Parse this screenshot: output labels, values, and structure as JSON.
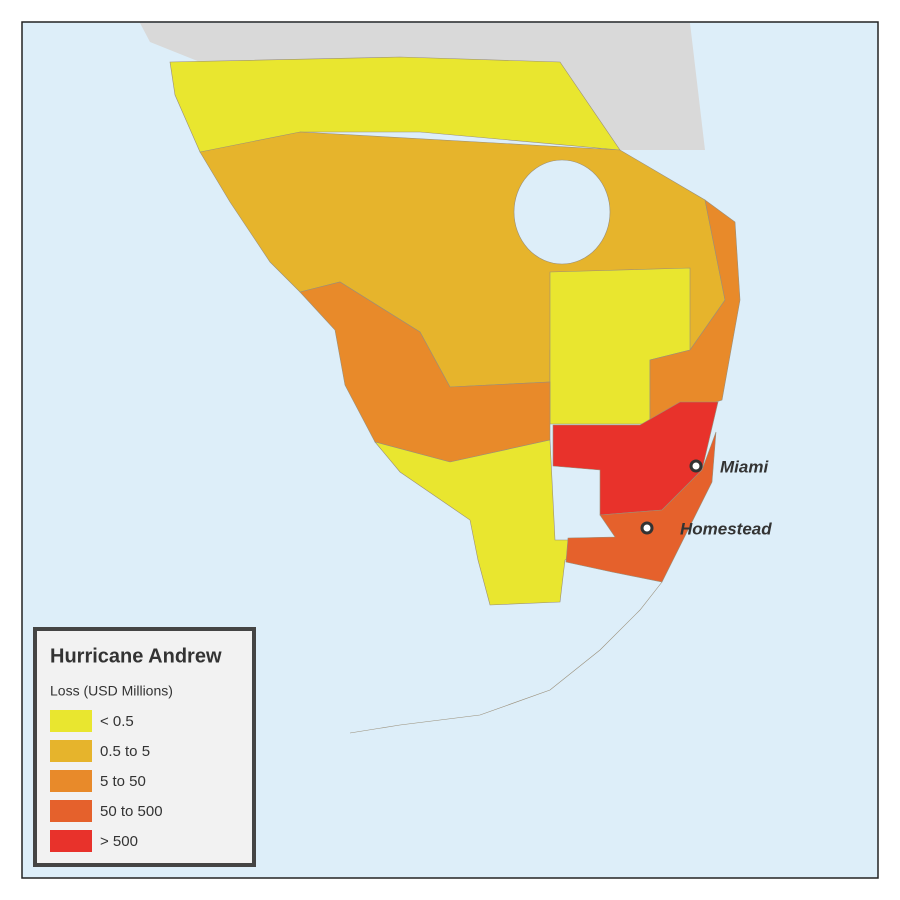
{
  "legend": {
    "title": "Hurricane Andrew",
    "subtitle": "Loss (USD Millions)",
    "items": [
      {
        "label": "< 0.5",
        "color": "#e9e62f"
      },
      {
        "label": "0.5 to 5",
        "color": "#e6b42c"
      },
      {
        "label": "5 to 50",
        "color": "#e88a2a"
      },
      {
        "label": "50 to 500",
        "color": "#e5612c"
      },
      {
        "label": "> 500",
        "color": "#e8322b"
      }
    ]
  },
  "cities": [
    {
      "name": "Miami"
    },
    {
      "name": "Homestead"
    }
  ]
}
